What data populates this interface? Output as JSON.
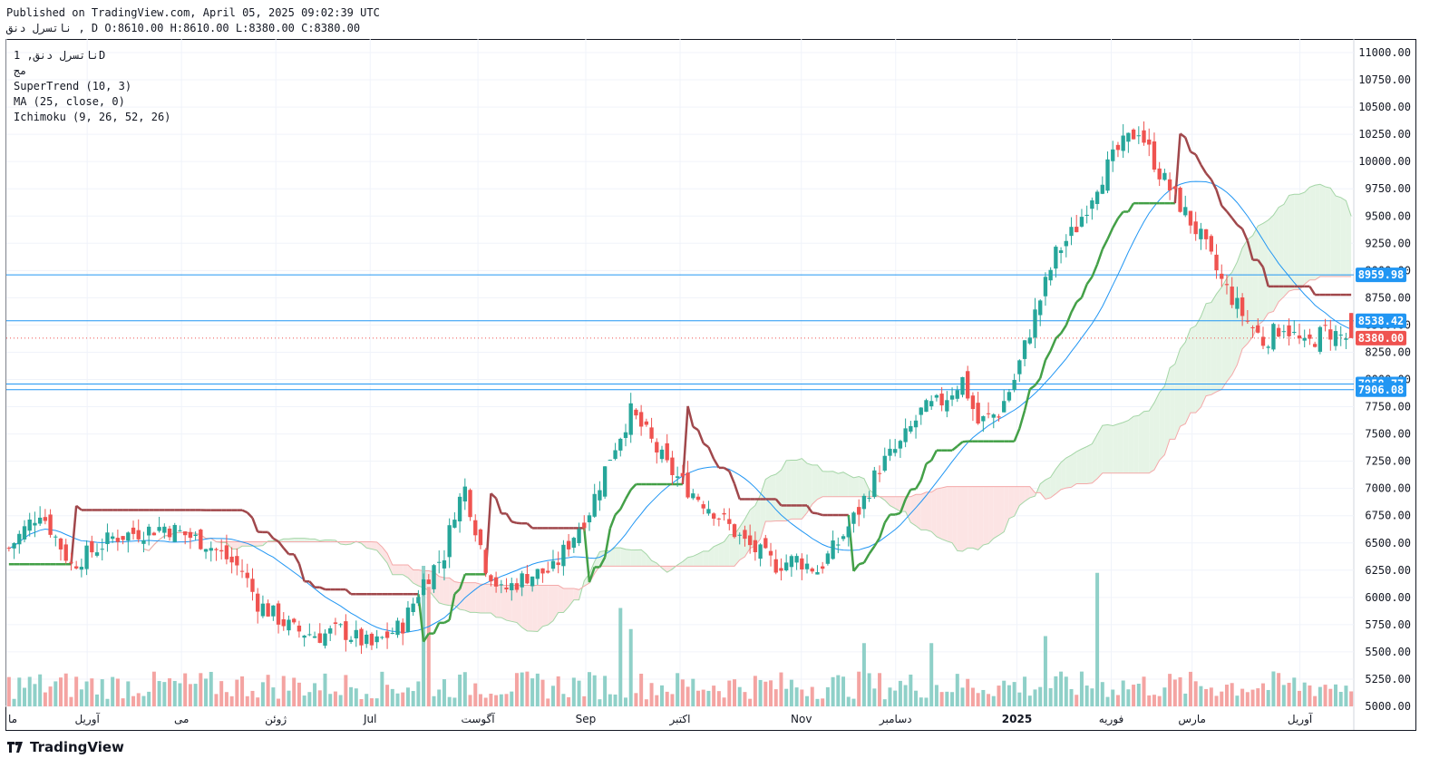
{
  "header": {
    "published": "Published on TradingView.com, April 05, 2025 09:02:39 UTC",
    "ohlc_line": "ناتسرل دنق , D O:8610.00 H:8610.00 L:8380.00 C:8380.00"
  },
  "legend": {
    "symbol": "ناتسرل دنق, 1D",
    "exchange": "مج",
    "indicators": [
      "SuperTrend (10, 3)",
      "MA (25, close, 0)",
      "Ichimoku (9, 26, 52, 26)"
    ]
  },
  "brand": "TradingView",
  "colors": {
    "up": "#26a69a",
    "down": "#ef5350",
    "supertrend_up": "#43a047",
    "supertrend_down": "#a0474b",
    "ma": "#2196f3",
    "cloud_up": "#e6f4e6",
    "cloud_down": "#fce4e4",
    "hline": "#2196f3",
    "price_tag": "#ef5350"
  },
  "chart_data": {
    "type": "candlestick",
    "interval": "1D",
    "ylim": [
      5000,
      11000
    ],
    "y_ticks": [
      5000,
      5250,
      5500,
      5750,
      6000,
      6250,
      6500,
      6750,
      7000,
      7250,
      7500,
      7750,
      8000,
      8250,
      8500,
      8750,
      9000,
      9250,
      9500,
      9750,
      10000,
      10250,
      10500,
      10750,
      11000
    ],
    "x_labels": [
      "ما",
      "آوریل",
      "می",
      "ژوئن",
      "Jul",
      "آگوست",
      "Sep",
      "اکتبر",
      "Nov",
      "دسامبر",
      "2025",
      "فوریه",
      "مارس",
      "آوریل"
    ],
    "x_label_positions": [
      0.0,
      0.06,
      0.13,
      0.2,
      0.27,
      0.35,
      0.43,
      0.5,
      0.59,
      0.66,
      0.75,
      0.82,
      0.88,
      0.96
    ],
    "horizontal_lines": [
      {
        "value": 8959.98,
        "label": "8959.98"
      },
      {
        "value": 8538.42,
        "label": "8538.42"
      },
      {
        "value": 7958.77,
        "label": "7958.77"
      },
      {
        "value": 7906.08,
        "label": "7906.08"
      }
    ],
    "last_price": {
      "value": 8380.0,
      "label": "8380.00"
    },
    "price_anchors": [
      [
        0,
        6450
      ],
      [
        6,
        6800
      ],
      [
        12,
        6300
      ],
      [
        20,
        6550
      ],
      [
        30,
        6650
      ],
      [
        38,
        6500
      ],
      [
        45,
        6250
      ],
      [
        48,
        5950
      ],
      [
        55,
        5700
      ],
      [
        60,
        5650
      ],
      [
        64,
        5700
      ],
      [
        70,
        5550
      ],
      [
        76,
        5750
      ],
      [
        80,
        6150
      ],
      [
        84,
        6400
      ],
      [
        86,
        6800
      ],
      [
        88,
        7000
      ],
      [
        92,
        6300
      ],
      [
        95,
        6050
      ],
      [
        100,
        6200
      ],
      [
        105,
        6250
      ],
      [
        108,
        6500
      ],
      [
        112,
        6800
      ],
      [
        116,
        7300
      ],
      [
        120,
        7700
      ],
      [
        123,
        7500
      ],
      [
        127,
        7200
      ],
      [
        131,
        7000
      ],
      [
        136,
        6800
      ],
      [
        142,
        6500
      ],
      [
        148,
        6300
      ],
      [
        152,
        6350
      ],
      [
        156,
        6250
      ],
      [
        160,
        6500
      ],
      [
        164,
        6800
      ],
      [
        168,
        7200
      ],
      [
        172,
        7400
      ],
      [
        176,
        7700
      ],
      [
        180,
        7800
      ],
      [
        184,
        8000
      ],
      [
        187,
        7600
      ],
      [
        191,
        7700
      ],
      [
        194,
        8000
      ],
      [
        198,
        8600
      ],
      [
        202,
        9150
      ],
      [
        206,
        9400
      ],
      [
        210,
        9800
      ],
      [
        214,
        10100
      ],
      [
        218,
        10300
      ],
      [
        222,
        9900
      ],
      [
        226,
        9600
      ],
      [
        230,
        9300
      ],
      [
        234,
        8900
      ],
      [
        238,
        8600
      ],
      [
        242,
        8350
      ],
      [
        246,
        8500
      ],
      [
        250,
        8300
      ],
      [
        254,
        8450
      ],
      [
        258,
        8380
      ]
    ],
    "volume_peaks": [
      {
        "bar": 80,
        "value": 1.0
      },
      {
        "bar": 81,
        "value": 0.85
      },
      {
        "bar": 118,
        "value": 0.7
      },
      {
        "bar": 120,
        "value": 0.55
      },
      {
        "bar": 210,
        "value": 0.95
      },
      {
        "bar": 200,
        "value": 0.5
      },
      {
        "bar": 165,
        "value": 0.45
      },
      {
        "bar": 178,
        "value": 0.45
      }
    ]
  }
}
